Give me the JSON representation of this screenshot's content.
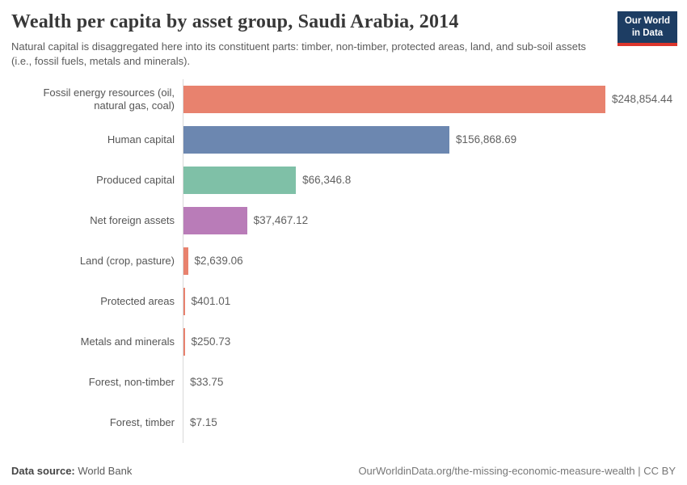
{
  "header": {
    "title": "Wealth per capita by asset group, Saudi Arabia, 2014",
    "subtitle": "Natural capital is disaggregated here into its constituent parts: timber, non-timber, protected areas, land, and sub-soil assets (i.e., fossil fuels, metals and minerals).",
    "logo": {
      "line1": "Our World",
      "line2": "in Data",
      "bg_color": "#1d3d63",
      "stripe_color": "#dc352c"
    }
  },
  "chart_data": {
    "type": "bar",
    "orientation": "horizontal",
    "title": "Wealth per capita by asset group, Saudi Arabia, 2014",
    "xlabel": "",
    "ylabel": "",
    "unit": "US$ per capita",
    "xlim": [
      0,
      250000
    ],
    "grid": false,
    "legend": false,
    "categories": [
      "Fossil energy resources (oil, natural gas, coal)",
      "Human capital",
      "Produced capital",
      "Net foreign assets",
      "Land (crop, pasture)",
      "Protected areas",
      "Metals and minerals",
      "Forest, non-timber",
      "Forest, timber"
    ],
    "values": [
      248854.44,
      156868.69,
      66346.8,
      37467.12,
      2639.06,
      401.01,
      250.73,
      33.75,
      7.15
    ],
    "value_labels": [
      "$248,854.44",
      "$156,868.69",
      "$66,346.8",
      "$37,467.12",
      "$2,639.06",
      "$401.01",
      "$250.73",
      "$33.75",
      "$7.15"
    ],
    "bar_colors": [
      "#E8826E",
      "#6C87B0",
      "#7FC0A7",
      "#B97CB8",
      "#E8826E",
      "#E8826E",
      "#E8826E",
      "#E8826E",
      "#E8826E"
    ],
    "axis_line_color": "#d9d9d9"
  },
  "footer": {
    "datasource_label": "Data source:",
    "datasource_value": " World Bank",
    "link": "OurWorldinData.org/the-missing-economic-measure-wealth | CC BY"
  }
}
